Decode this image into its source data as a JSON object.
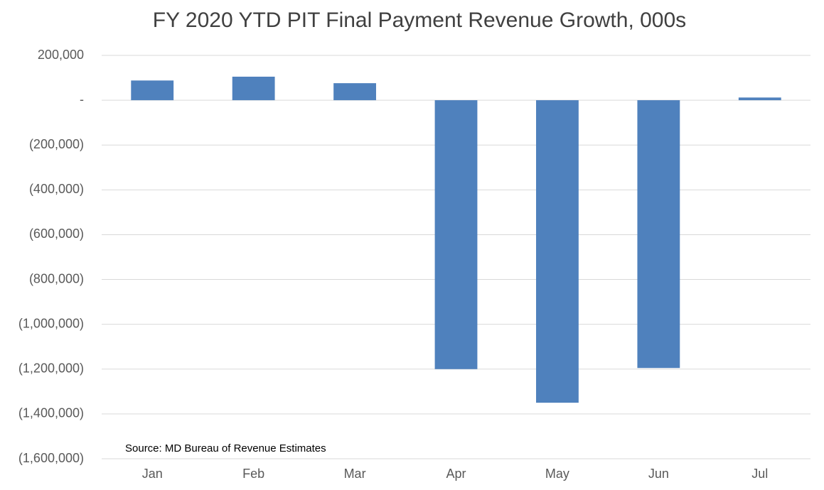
{
  "chart_data": {
    "type": "bar",
    "title": "FY 2020 YTD PIT Final Payment Revenue Growth, 000s",
    "annotation": "Source: MD Bureau of Revenue Estimates",
    "categories": [
      "Jan",
      "Feb",
      "Mar",
      "Apr",
      "May",
      "Jun",
      "Jul"
    ],
    "values": [
      88000,
      105000,
      76000,
      -1200000,
      -1350000,
      -1195000,
      12000
    ],
    "color": "#4f81bd",
    "ylim": [
      -1600000,
      200000
    ],
    "yticks": [
      {
        "value": -1600000,
        "label": "(1,600,000)"
      },
      {
        "value": -1400000,
        "label": "(1,400,000)"
      },
      {
        "value": -1200000,
        "label": "(1,200,000)"
      },
      {
        "value": -1000000,
        "label": "(1,000,000)"
      },
      {
        "value": -800000,
        "label": "(800,000)"
      },
      {
        "value": -600000,
        "label": "(600,000)"
      },
      {
        "value": -400000,
        "label": "(400,000)"
      },
      {
        "value": -200000,
        "label": "(200,000)"
      },
      {
        "value": 0,
        "label": "-"
      },
      {
        "value": 200000,
        "label": "200,000"
      }
    ],
    "grid": true
  }
}
